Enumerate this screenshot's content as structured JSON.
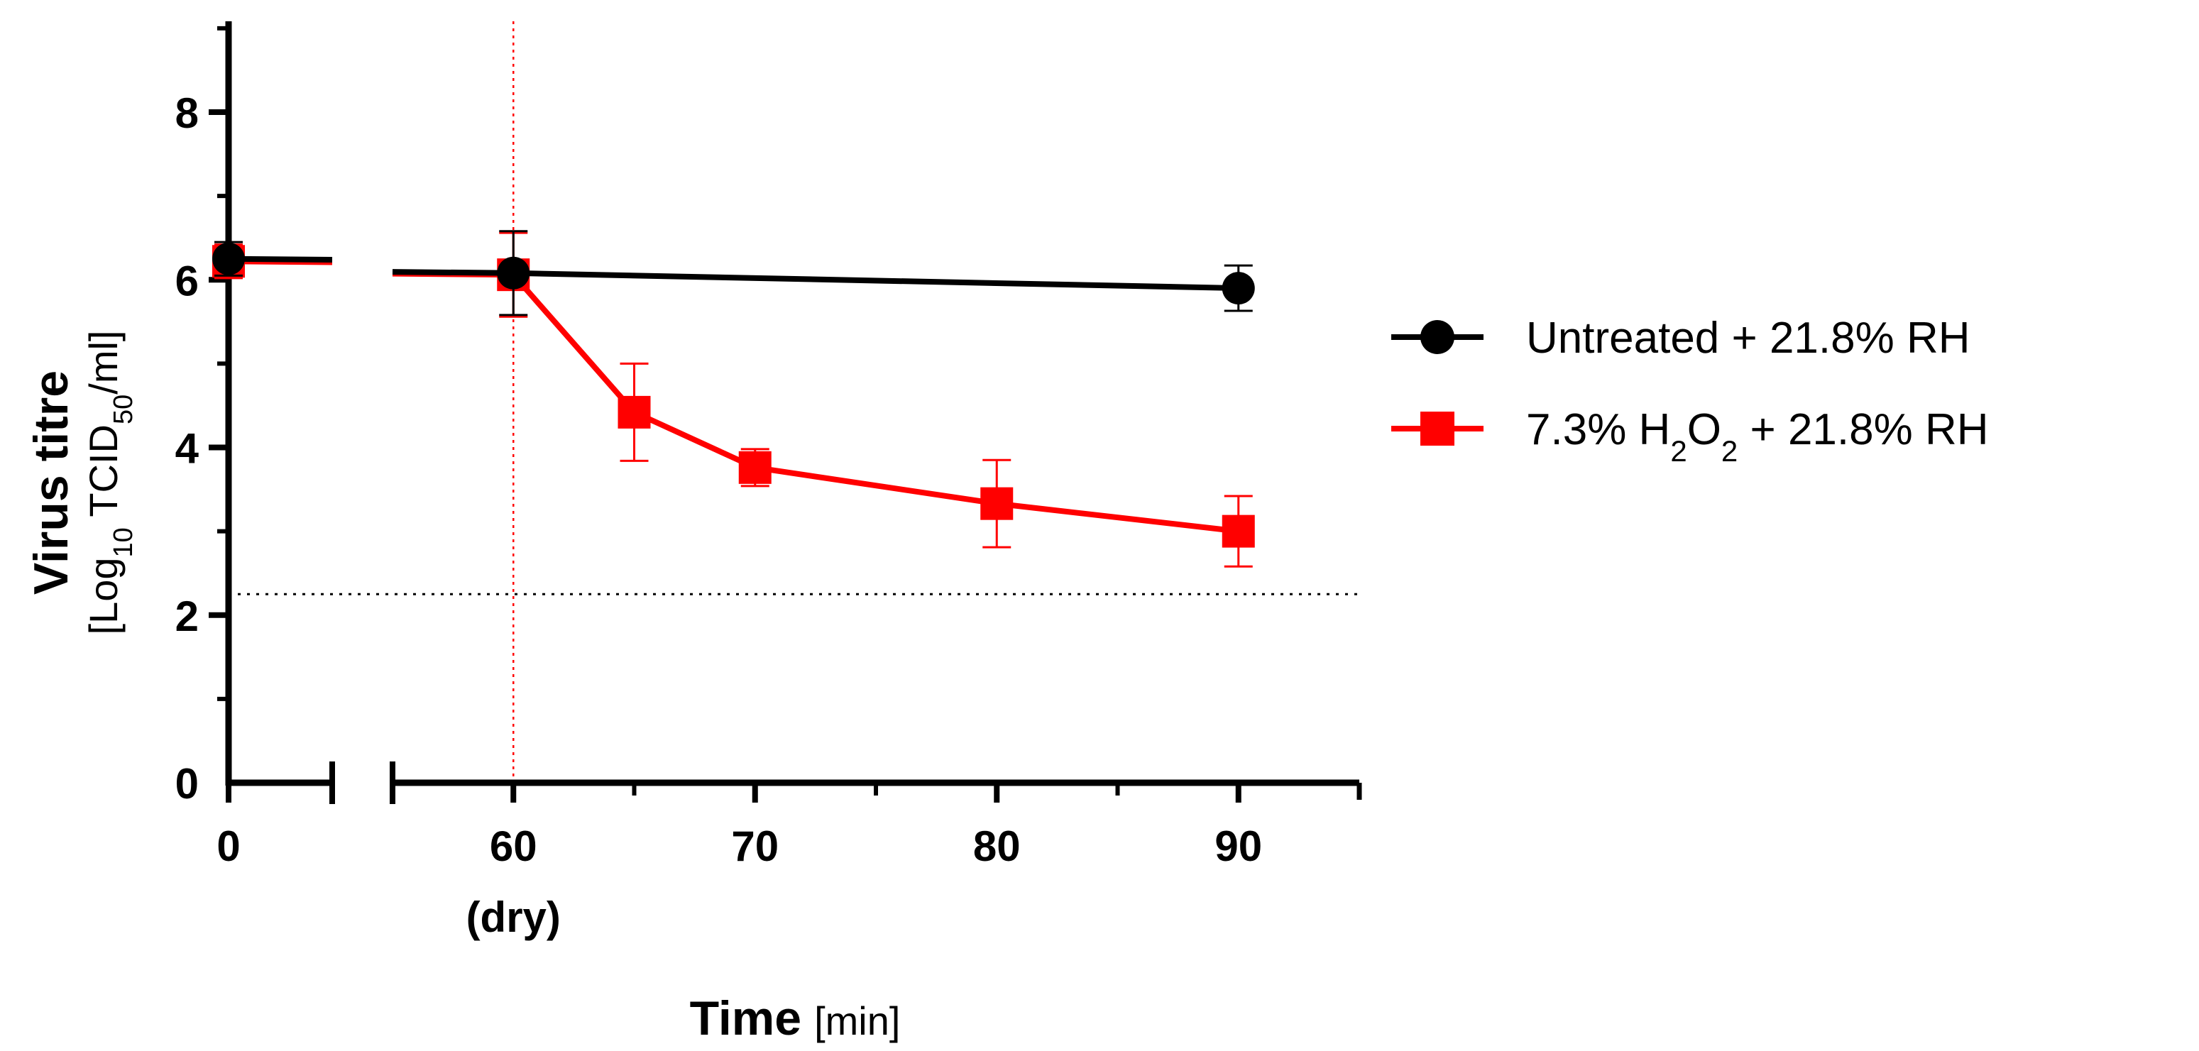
{
  "chart_data": {
    "type": "line",
    "title": "",
    "xlabel": {
      "bold": "Time",
      "unit": "[min]"
    },
    "ylabel": {
      "bold": "Virus titre",
      "unit_prefix": "[Log",
      "unit_sub1": "10",
      "unit_mid": " TCID",
      "unit_sub2": "50",
      "unit_suffix": "/ml]"
    },
    "ylim": [
      0,
      9
    ],
    "y_ticks": [
      0,
      2,
      4,
      6,
      8
    ],
    "x_segments": [
      {
        "range": [
          0,
          4
        ],
        "ticks": [
          {
            "value": 0,
            "label": "0"
          }
        ]
      },
      {
        "range": [
          55,
          95
        ],
        "ticks": [
          {
            "value": 60,
            "label": "60"
          },
          {
            "value": 70,
            "label": "70"
          },
          {
            "value": 80,
            "label": "80"
          },
          {
            "value": 90,
            "label": "90"
          }
        ]
      }
    ],
    "x_sublabel": {
      "value": 60,
      "label": "(dry)"
    },
    "reference_lines": {
      "detection_limit_y": 2.25,
      "drying_x": 60
    },
    "series": [
      {
        "name_parts": [
          "Untreated + 21.8% RH"
        ],
        "color": "#000000",
        "marker": "circle",
        "points": [
          {
            "x": 0,
            "y": 6.25,
            "err": 0.2
          },
          {
            "x": 60,
            "y": 6.08,
            "err": 0.5
          },
          {
            "x": 90,
            "y": 5.9,
            "err": 0.27
          }
        ]
      },
      {
        "name_parts": [
          "7.3% H",
          "2",
          "O",
          "2",
          " + 21.8% RH"
        ],
        "color": "#ff0000",
        "marker": "square",
        "points": [
          {
            "x": 0,
            "y": 6.22,
            "err": 0.2
          },
          {
            "x": 60,
            "y": 6.06,
            "err": 0.5
          },
          {
            "x": 65,
            "y": 4.42,
            "err": 0.58
          },
          {
            "x": 70,
            "y": 3.76,
            "err": 0.22
          },
          {
            "x": 80,
            "y": 3.33,
            "err": 0.52
          },
          {
            "x": 90,
            "y": 3.0,
            "err": 0.42
          }
        ]
      }
    ]
  }
}
